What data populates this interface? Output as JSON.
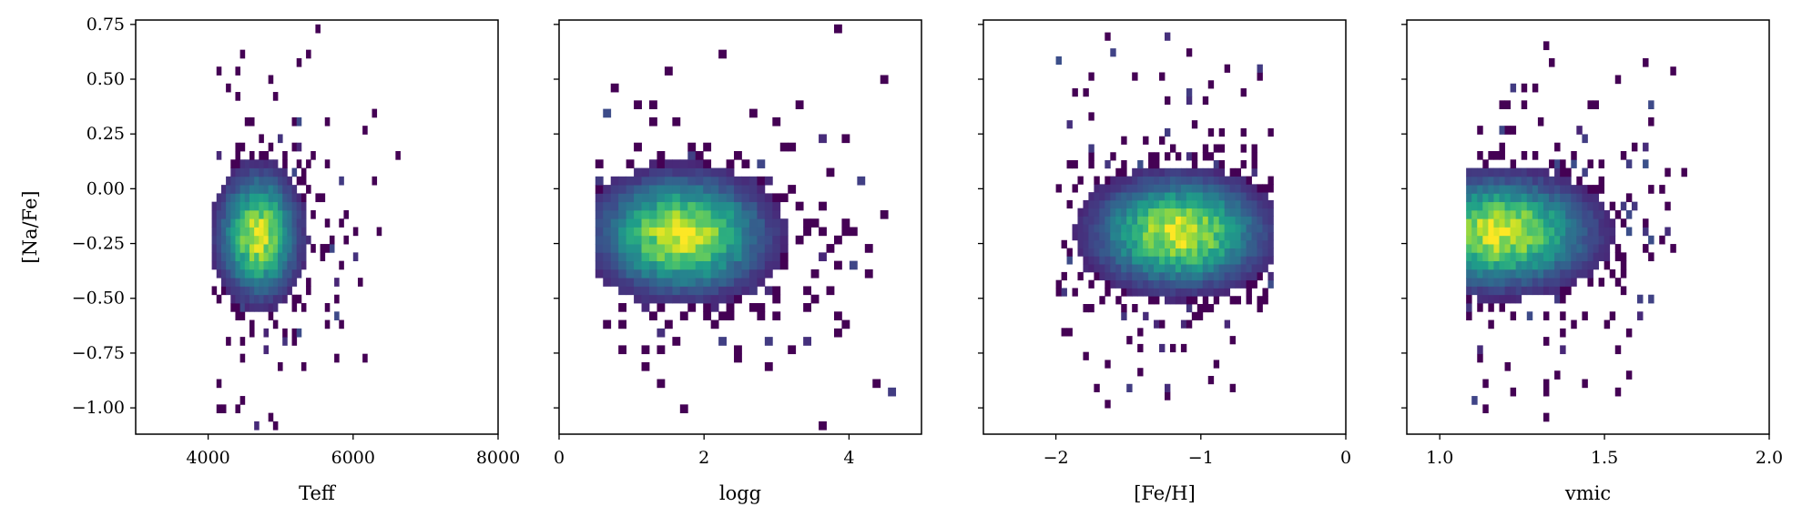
{
  "chart_data": [
    {
      "type": "heatmap",
      "xlabel": "Teff",
      "ylabel": "[Na/Fe]",
      "xlim": [
        3000,
        8000
      ],
      "ylim": [
        -1.12,
        0.77
      ],
      "xticks": [
        4000,
        6000,
        8000
      ],
      "xtick_labels": [
        "4000",
        "6000",
        "8000"
      ],
      "yticks": [
        0.75,
        0.5,
        0.25,
        0.0,
        -0.25,
        -0.5,
        -0.75,
        -1.0
      ],
      "ytick_labels": [
        "0.75",
        "0.50",
        "0.25",
        "0.00",
        "−0.25",
        "−0.50",
        "−0.75",
        "−1.00"
      ],
      "density": {
        "center_x": 4700,
        "center_y": -0.21,
        "spread_x": 330,
        "spread_y": 0.17,
        "x_range": [
          4050,
          6650
        ],
        "y_range": [
          -1.1,
          0.75
        ]
      },
      "colormap": "viridis"
    },
    {
      "type": "heatmap",
      "xlabel": "logg",
      "ylabel": "",
      "xlim": [
        0,
        5
      ],
      "ylim": [
        -1.12,
        0.77
      ],
      "xticks": [
        0,
        2,
        4
      ],
      "xtick_labels": [
        "0",
        "2",
        "4"
      ],
      "yticks": [
        0.75,
        0.5,
        0.25,
        0.0,
        -0.25,
        -0.5,
        -0.75,
        -1.0
      ],
      "ytick_labels": [],
      "density": {
        "center_x": 1.7,
        "center_y": -0.21,
        "spread_x": 0.7,
        "spread_y": 0.16,
        "x_range": [
          0.5,
          4.75
        ],
        "y_range": [
          -1.1,
          0.75
        ]
      },
      "colormap": "viridis"
    },
    {
      "type": "heatmap",
      "xlabel": "[Fe/H]",
      "ylabel": "",
      "xlim": [
        -2.5,
        0
      ],
      "ylim": [
        -1.12,
        0.77
      ],
      "xticks": [
        -2,
        -1,
        0
      ],
      "xtick_labels": [
        "−2",
        "−1",
        "0"
      ],
      "yticks": [
        0.75,
        0.5,
        0.25,
        0.0,
        -0.25,
        -0.5,
        -0.75,
        -1.0
      ],
      "ytick_labels": [],
      "density": {
        "center_x": -1.15,
        "center_y": -0.2,
        "spread_x": 0.35,
        "spread_y": 0.15,
        "x_range": [
          -2.0,
          -0.5
        ],
        "y_range": [
          -1.0,
          0.75
        ]
      },
      "colormap": "viridis"
    },
    {
      "type": "heatmap",
      "xlabel": "vmic",
      "ylabel": "",
      "xlim": [
        0.9,
        2.0
      ],
      "ylim": [
        -1.12,
        0.77
      ],
      "xticks": [
        1.0,
        1.5,
        2.0
      ],
      "xtick_labels": [
        "1.0",
        "1.5",
        "2.0"
      ],
      "yticks": [
        0.75,
        0.5,
        0.25,
        0.0,
        -0.25,
        -0.5,
        -0.75,
        -1.0
      ],
      "ytick_labels": [],
      "density": {
        "center_x": 1.18,
        "center_y": -0.2,
        "spread_x": 0.17,
        "spread_y": 0.15,
        "x_range": [
          1.08,
          1.75
        ],
        "y_range": [
          -1.1,
          0.75
        ]
      },
      "colormap": "viridis"
    }
  ]
}
